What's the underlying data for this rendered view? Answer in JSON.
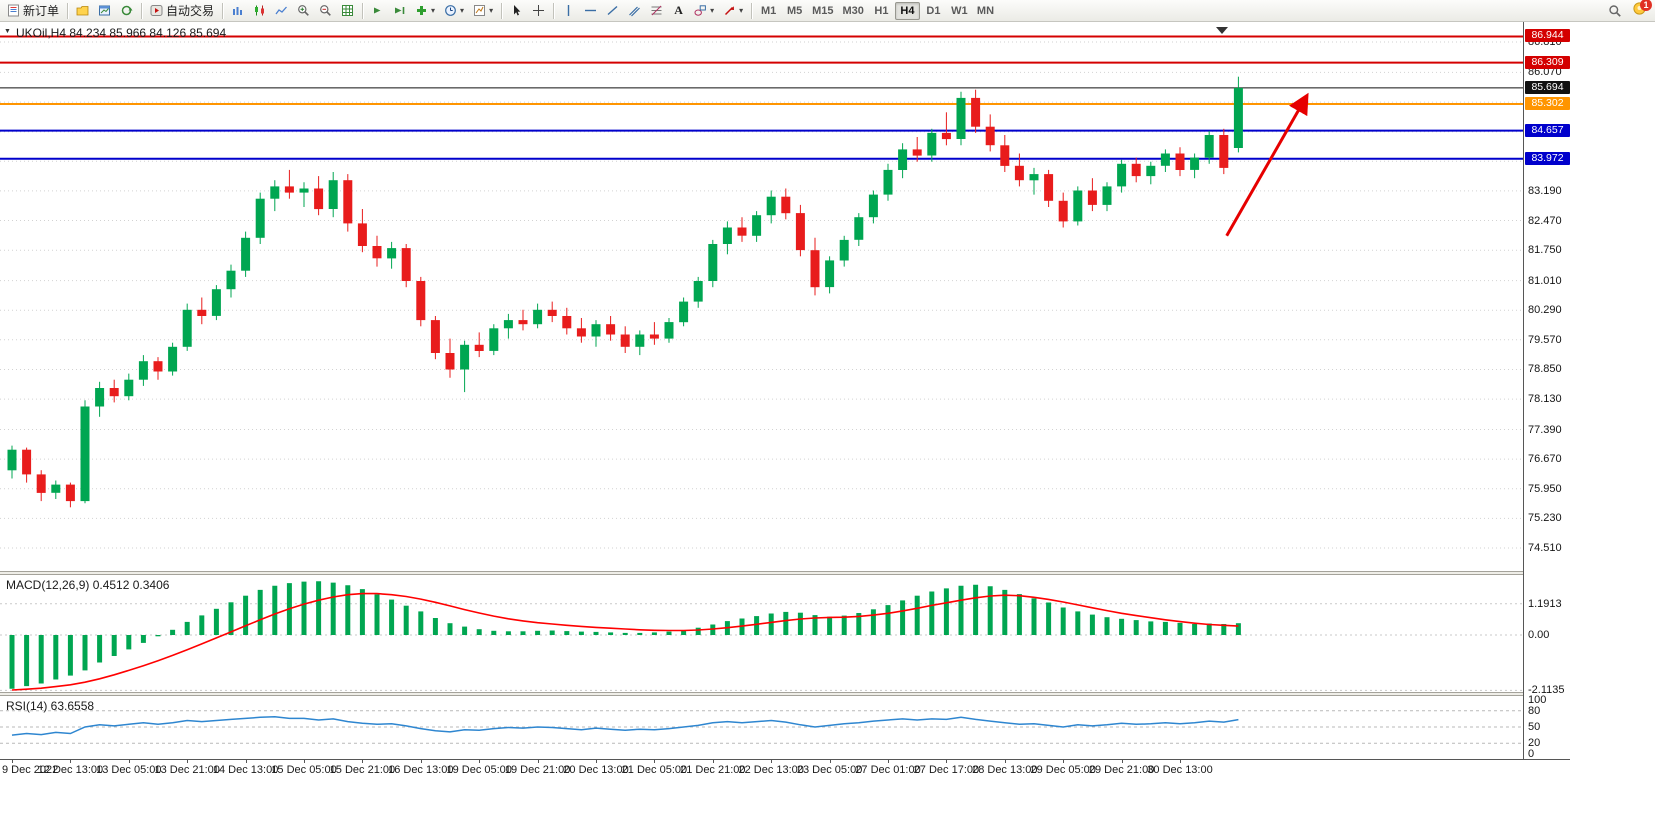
{
  "toolbar": {
    "new_order_label": "新订单",
    "auto_trading_label": "自动交易",
    "text_tool_label": "A",
    "caret": "▾",
    "timeframes": [
      "M1",
      "M5",
      "M15",
      "M30",
      "H1",
      "H4",
      "D1",
      "W1",
      "MN"
    ],
    "active_timeframe": "H4",
    "notification_count": "1"
  },
  "chart": {
    "collapse_arrow": "▼",
    "title": "UKOil,H4 84.234 85.966 84.126 85.694",
    "symbol": "UKOil",
    "period": "H4",
    "open": "84.234",
    "high": "85.966",
    "low": "84.126",
    "close": "85.694"
  },
  "chart_data": {
    "type": "candlestick",
    "symbol": "UKOil",
    "timeframe": "H4",
    "up_color": "#00a651",
    "down_color": "#e81c1c",
    "gr id_note": "",
    "y_labels": [
      "86.810",
      "86.070",
      "83.190",
      "82.470",
      "81.750",
      "81.010",
      "80.290",
      "79.570",
      "78.850",
      "78.130",
      "77.390",
      "76.670",
      "75.950",
      "75.230",
      "74.510"
    ],
    "y_gridlines_extra": [
      85.35,
      84.63,
      83.91
    ],
    "horizontal_lines": [
      {
        "label": "86.944",
        "price": 86.944,
        "color": "#d40000",
        "width": 2
      },
      {
        "label": "86.309",
        "price": 86.309,
        "color": "#d40000",
        "width": 2
      },
      {
        "label": "85.694",
        "price": 85.694,
        "color": "#111111",
        "width": 1
      },
      {
        "label": "85.302",
        "price": 85.302,
        "color": "#ff9500",
        "width": 2
      },
      {
        "label": "84.657",
        "price": 84.657,
        "color": "#0000cc",
        "width": 2
      },
      {
        "label": "83.972",
        "price": 83.972,
        "color": "#0000cc",
        "width": 2
      }
    ],
    "trend_arrow": {
      "from": {
        "candle": 83.2,
        "price": 82.1
      },
      "to": {
        "candle": 88.6,
        "price": 85.45
      },
      "color": "#e60000"
    },
    "time_labels": [
      "9 Dec 2022",
      "12 Dec 13:00",
      "13 Dec 05:00",
      "13 Dec 21:00",
      "14 Dec 13:00",
      "15 Dec 05:00",
      "15 Dec 21:00",
      "16 Dec 13:00",
      "19 Dec 05:00",
      "19 Dec 21:00",
      "20 Dec 13:00",
      "21 Dec 05:00",
      "21 Dec 21:00",
      "22 Dec 13:00",
      "23 Dec 05:00",
      "27 Dec 01:00",
      "27 Dec 17:00",
      "28 Dec 13:00",
      "29 Dec 05:00",
      "29 Dec 21:00",
      "30 Dec 13:00"
    ],
    "candles_per_label": 4,
    "candles": [
      [
        76.4,
        77.0,
        76.2,
        76.9
      ],
      [
        76.9,
        76.95,
        76.1,
        76.3
      ],
      [
        76.3,
        76.4,
        75.65,
        75.85
      ],
      [
        75.85,
        76.15,
        75.7,
        76.05
      ],
      [
        76.05,
        76.1,
        75.5,
        75.65
      ],
      [
        75.65,
        78.1,
        75.6,
        77.95
      ],
      [
        77.95,
        78.55,
        77.7,
        78.4
      ],
      [
        78.4,
        78.6,
        78.05,
        78.2
      ],
      [
        78.2,
        78.75,
        78.1,
        78.6
      ],
      [
        78.6,
        79.2,
        78.45,
        79.05
      ],
      [
        79.05,
        79.15,
        78.6,
        78.8
      ],
      [
        78.8,
        79.5,
        78.7,
        79.4
      ],
      [
        79.4,
        80.45,
        79.3,
        80.3
      ],
      [
        80.3,
        80.6,
        79.95,
        80.15
      ],
      [
        80.15,
        80.9,
        80.05,
        80.8
      ],
      [
        80.8,
        81.4,
        80.6,
        81.25
      ],
      [
        81.25,
        82.2,
        81.1,
        82.05
      ],
      [
        82.05,
        83.15,
        81.9,
        83.0
      ],
      [
        83.0,
        83.45,
        82.7,
        83.3
      ],
      [
        83.3,
        83.7,
        83.0,
        83.15
      ],
      [
        83.15,
        83.4,
        82.8,
        83.25
      ],
      [
        83.25,
        83.55,
        82.6,
        82.75
      ],
      [
        82.75,
        83.65,
        82.55,
        83.45
      ],
      [
        83.45,
        83.6,
        82.2,
        82.4
      ],
      [
        82.4,
        82.75,
        81.7,
        81.85
      ],
      [
        81.85,
        82.1,
        81.35,
        81.55
      ],
      [
        81.55,
        81.95,
        81.3,
        81.8
      ],
      [
        81.8,
        81.9,
        80.85,
        81.0
      ],
      [
        81.0,
        81.1,
        79.9,
        80.05
      ],
      [
        80.05,
        80.15,
        79.1,
        79.25
      ],
      [
        79.25,
        79.6,
        78.65,
        78.85
      ],
      [
        78.85,
        79.55,
        78.3,
        79.45
      ],
      [
        79.45,
        79.75,
        79.15,
        79.3
      ],
      [
        79.3,
        79.95,
        79.2,
        79.85
      ],
      [
        79.85,
        80.2,
        79.6,
        80.05
      ],
      [
        80.05,
        80.3,
        79.8,
        79.95
      ],
      [
        79.95,
        80.45,
        79.85,
        80.3
      ],
      [
        80.3,
        80.5,
        80.0,
        80.15
      ],
      [
        80.15,
        80.35,
        79.7,
        79.85
      ],
      [
        79.85,
        80.1,
        79.5,
        79.65
      ],
      [
        79.65,
        80.05,
        79.4,
        79.95
      ],
      [
        79.95,
        80.15,
        79.55,
        79.7
      ],
      [
        79.7,
        79.9,
        79.25,
        79.4
      ],
      [
        79.4,
        79.8,
        79.2,
        79.7
      ],
      [
        79.7,
        80.0,
        79.45,
        79.6
      ],
      [
        79.6,
        80.1,
        79.5,
        80.0
      ],
      [
        80.0,
        80.6,
        79.9,
        80.5
      ],
      [
        80.5,
        81.1,
        80.35,
        81.0
      ],
      [
        81.0,
        82.0,
        80.85,
        81.9
      ],
      [
        81.9,
        82.45,
        81.65,
        82.3
      ],
      [
        82.3,
        82.55,
        81.95,
        82.1
      ],
      [
        82.1,
        82.7,
        81.95,
        82.6
      ],
      [
        82.6,
        83.2,
        82.4,
        83.05
      ],
      [
        83.05,
        83.25,
        82.5,
        82.65
      ],
      [
        82.65,
        82.85,
        81.6,
        81.75
      ],
      [
        81.75,
        82.05,
        80.65,
        80.85
      ],
      [
        80.85,
        81.6,
        80.7,
        81.5
      ],
      [
        81.5,
        82.1,
        81.35,
        82.0
      ],
      [
        82.0,
        82.65,
        81.85,
        82.55
      ],
      [
        82.55,
        83.2,
        82.4,
        83.1
      ],
      [
        83.1,
        83.85,
        82.95,
        83.7
      ],
      [
        83.7,
        84.35,
        83.5,
        84.2
      ],
      [
        84.2,
        84.5,
        83.9,
        84.05
      ],
      [
        84.05,
        84.7,
        83.9,
        84.6
      ],
      [
        84.6,
        85.1,
        84.3,
        84.45
      ],
      [
        84.45,
        85.6,
        84.3,
        85.45
      ],
      [
        85.45,
        85.65,
        84.6,
        84.75
      ],
      [
        84.75,
        85.05,
        84.15,
        84.3
      ],
      [
        84.3,
        84.55,
        83.65,
        83.8
      ],
      [
        83.8,
        84.1,
        83.3,
        83.45
      ],
      [
        83.45,
        83.75,
        83.1,
        83.6
      ],
      [
        83.6,
        83.7,
        82.8,
        82.95
      ],
      [
        82.95,
        83.15,
        82.3,
        82.45
      ],
      [
        82.45,
        83.3,
        82.35,
        83.2
      ],
      [
        83.2,
        83.5,
        82.7,
        82.85
      ],
      [
        82.85,
        83.4,
        82.7,
        83.3
      ],
      [
        83.3,
        83.95,
        83.15,
        83.85
      ],
      [
        83.85,
        84.0,
        83.4,
        83.55
      ],
      [
        83.55,
        83.9,
        83.35,
        83.8
      ],
      [
        83.8,
        84.2,
        83.65,
        84.1
      ],
      [
        84.1,
        84.25,
        83.55,
        83.7
      ],
      [
        83.7,
        84.1,
        83.5,
        84.0
      ],
      [
        84.0,
        84.65,
        83.85,
        84.55
      ],
      [
        84.55,
        84.7,
        83.6,
        83.75
      ],
      [
        84.234,
        85.966,
        84.126,
        85.694
      ]
    ],
    "macd": {
      "label": "MACD(12,26,9) 0.4512 0.3406",
      "params": "12,26,9",
      "value": "0.4512",
      "signal_value": "0.3406",
      "histogram_color": "#00a651",
      "signal_color": "#ff0000",
      "axis_labels": [
        "1.1913",
        "0.00",
        "-2.1135"
      ],
      "axis_values": [
        1.1913,
        0,
        -2.1135
      ],
      "histogram": [
        -2.05,
        -1.95,
        -1.85,
        -1.7,
        -1.55,
        -1.35,
        -1.05,
        -0.8,
        -0.55,
        -0.3,
        -0.05,
        0.2,
        0.5,
        0.75,
        1,
        1.25,
        1.5,
        1.72,
        1.88,
        1.98,
        2.04,
        2.05,
        2,
        1.9,
        1.75,
        1.55,
        1.35,
        1.12,
        0.9,
        0.65,
        0.45,
        0.32,
        0.22,
        0.16,
        0.14,
        0.14,
        0.16,
        0.17,
        0.15,
        0.13,
        0.12,
        0.1,
        0.08,
        0.08,
        0.1,
        0.13,
        0.18,
        0.28,
        0.4,
        0.53,
        0.63,
        0.72,
        0.82,
        0.88,
        0.85,
        0.76,
        0.7,
        0.74,
        0.84,
        0.98,
        1.14,
        1.32,
        1.5,
        1.66,
        1.78,
        1.88,
        1.92,
        1.86,
        1.72,
        1.56,
        1.4,
        1.24,
        1.05,
        0.9,
        0.78,
        0.68,
        0.62,
        0.57,
        0.52,
        0.5,
        0.46,
        0.42,
        0.44,
        0.42,
        0.4512
      ],
      "signal": [
        -2.1,
        -2.07,
        -2.03,
        -1.97,
        -1.9,
        -1.8,
        -1.67,
        -1.52,
        -1.35,
        -1.17,
        -0.98,
        -0.78,
        -0.56,
        -0.34,
        -0.11,
        0.12,
        0.35,
        0.58,
        0.8,
        1,
        1.18,
        1.33,
        1.45,
        1.54,
        1.58,
        1.58,
        1.54,
        1.47,
        1.37,
        1.25,
        1.11,
        0.97,
        0.84,
        0.72,
        0.62,
        0.54,
        0.47,
        0.42,
        0.37,
        0.33,
        0.29,
        0.26,
        0.23,
        0.2,
        0.18,
        0.17,
        0.17,
        0.19,
        0.23,
        0.28,
        0.34,
        0.41,
        0.48,
        0.55,
        0.61,
        0.65,
        0.67,
        0.68,
        0.71,
        0.76,
        0.83,
        0.92,
        1.02,
        1.13,
        1.23,
        1.33,
        1.42,
        1.49,
        1.52,
        1.5,
        1.44,
        1.36,
        1.26,
        1.15,
        1.04,
        0.93,
        0.83,
        0.74,
        0.66,
        0.58,
        0.51,
        0.45,
        0.4,
        0.37,
        0.3406
      ]
    },
    "rsi": {
      "label": "RSI(14) 63.6558",
      "period": "14",
      "value": "63.6558",
      "line_color": "#2e86d0",
      "levels": [
        80,
        50,
        20
      ],
      "axis_labels": [
        "100",
        "80",
        "50",
        "20",
        "0"
      ],
      "axis_values": [
        100,
        80,
        50,
        20,
        0
      ],
      "values": [
        35,
        38,
        36,
        40,
        38,
        50,
        54,
        52,
        55,
        58,
        55,
        58,
        62,
        60,
        62,
        64,
        66,
        68,
        69,
        66,
        66,
        63,
        65,
        60,
        57,
        55,
        56,
        52,
        47,
        43,
        41,
        45,
        44,
        47,
        49,
        48,
        50,
        49,
        47,
        45,
        48,
        46,
        44,
        46,
        45,
        47,
        50,
        53,
        58,
        60,
        58,
        60,
        62,
        59,
        54,
        50,
        53,
        56,
        58,
        61,
        63,
        65,
        63,
        65,
        64,
        68,
        64,
        61,
        58,
        55,
        56,
        53,
        50,
        54,
        52,
        54,
        57,
        55,
        56,
        58,
        56,
        58,
        61,
        59,
        63.6558
      ]
    }
  }
}
